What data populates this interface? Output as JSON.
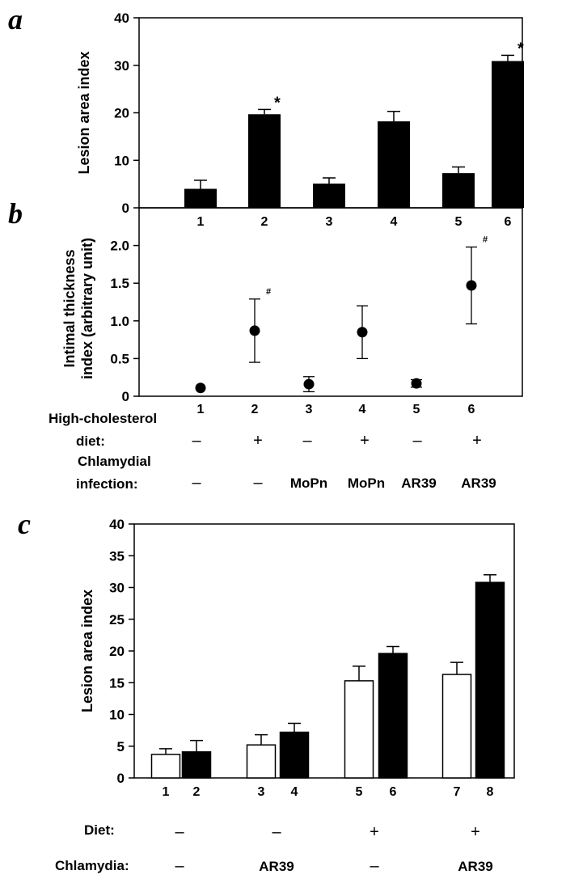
{
  "figure": {
    "panel_labels": [
      "a",
      "b",
      "c"
    ],
    "conditions_ab": {
      "diet_label": "High-cholesterol\ndiet:",
      "diet_values": [
        "–",
        "+",
        "–",
        "+",
        "–",
        "+"
      ],
      "infection_label": "Chlamydial\ninfection:",
      "infection_values": [
        "–",
        "–",
        "MoPn",
        "MoPn",
        "AR39",
        "AR39"
      ]
    },
    "conditions_c": {
      "diet_label": "Diet:",
      "diet_values": [
        "–",
        "–",
        "+",
        "+"
      ],
      "chlamydia_label": "Chlamydia:",
      "chlamydia_values": [
        "–",
        "AR39",
        "–",
        "AR39"
      ]
    }
  },
  "chart_data": [
    {
      "panel": "a",
      "type": "bar",
      "categories": [
        "1",
        "2",
        "3",
        "4",
        "5",
        "6"
      ],
      "values": [
        4.0,
        19.7,
        5.1,
        18.2,
        7.3,
        30.9
      ],
      "errors": [
        1.8,
        1.0,
        1.2,
        2.1,
        1.3,
        1.2
      ],
      "annotations": [
        "",
        "*",
        "",
        "",
        "",
        "*"
      ],
      "ylabel": "Lesion area index",
      "ylim": [
        0,
        40
      ],
      "yticks": [
        "0",
        "10",
        "20",
        "30",
        "40"
      ],
      "colors": [
        "#000000"
      ]
    },
    {
      "panel": "b",
      "type": "scatter",
      "categories": [
        "1",
        "2",
        "3",
        "4",
        "5",
        "6"
      ],
      "values": [
        0.11,
        0.87,
        0.16,
        0.85,
        0.17,
        1.47
      ],
      "errors": [
        0.0,
        0.42,
        0.1,
        0.35,
        0.05,
        0.51
      ],
      "annotations": [
        "",
        "#",
        "",
        "",
        "",
        "#"
      ],
      "ylabel": "Intimal thickness\nindex (arbitrary unit)",
      "ylim": [
        0,
        2.5
      ],
      "yticks": [
        "0",
        "0.5",
        "1.0",
        "1.5",
        "2.0"
      ]
    },
    {
      "panel": "c",
      "type": "bar",
      "categories": [
        "1",
        "2",
        "3",
        "4",
        "5",
        "6",
        "7",
        "8"
      ],
      "values": [
        3.7,
        4.1,
        5.2,
        7.2,
        15.3,
        19.6,
        16.3,
        30.8
      ],
      "errors": [
        0.9,
        1.8,
        1.6,
        1.4,
        2.3,
        1.1,
        1.9,
        1.2
      ],
      "fills": [
        "#ffffff",
        "#000000",
        "#ffffff",
        "#000000",
        "#ffffff",
        "#000000",
        "#ffffff",
        "#000000"
      ],
      "ylabel": "Lesion area index",
      "ylim": [
        0,
        40
      ],
      "yticks": [
        "0",
        "5",
        "10",
        "15",
        "20",
        "25",
        "30",
        "35",
        "40"
      ]
    }
  ]
}
